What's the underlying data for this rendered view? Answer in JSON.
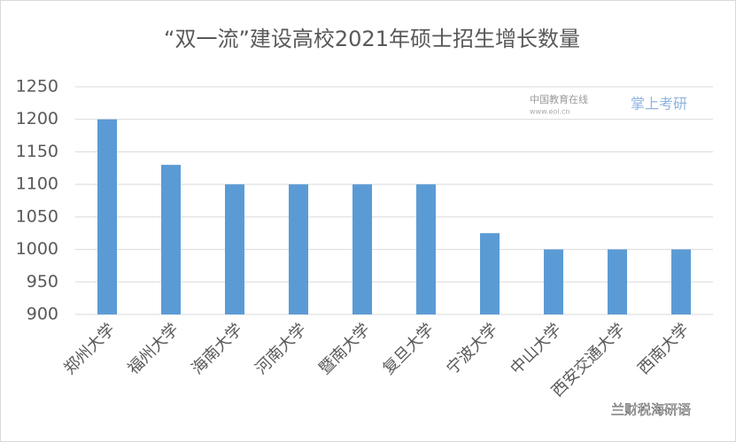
{
  "chart_data": {
    "type": "bar",
    "title": "“双一流”建设高校2021年硕士招生增长数量",
    "categories": [
      "郑州大学",
      "福州大学",
      "海南大学",
      "河南大学",
      "暨南大学",
      "复旦大学",
      "宁波大学",
      "中山大学",
      "西安交通大学",
      "西南大学"
    ],
    "values": [
      1200,
      1130,
      1100,
      1100,
      1100,
      1100,
      1025,
      1000,
      1000,
      1000
    ],
    "color": "#5b9bd5",
    "ylim": [
      900,
      1250
    ],
    "yticks": [
      900,
      950,
      1000,
      1050,
      1100,
      1150,
      1200,
      1250
    ],
    "grid": true,
    "annotations": [
      "中国教育在线",
      "www.eol.cn",
      "掌上考研",
      "兰财税海研语"
    ]
  }
}
